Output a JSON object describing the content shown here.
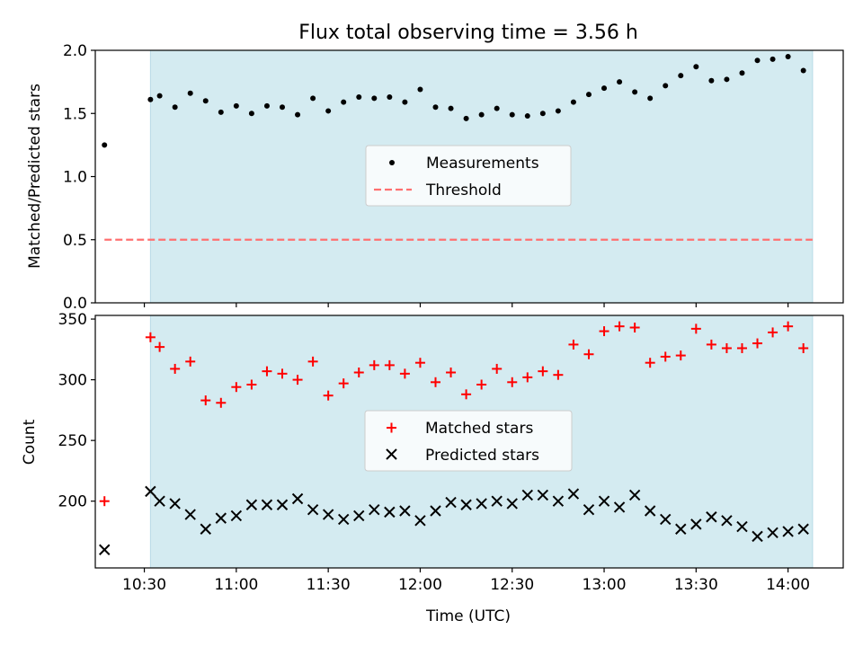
{
  "colors": {
    "observing_span": "#d4ebf1",
    "observing_span_edge": "#b8dbe6",
    "measurements": "#000000",
    "threshold": "#ff7070",
    "matched": "#ff0000",
    "predicted": "#000000"
  },
  "chart_data": [
    {
      "type": "scatter",
      "title": "Flux total observing time = 3.56 h",
      "ylabel": "Matched/Predicted stars",
      "xlim": [
        "10:14",
        "14:18"
      ],
      "ylim": [
        0,
        2.0
      ],
      "yticks": [
        0.0,
        0.5,
        1.0,
        1.5,
        2.0
      ],
      "ytick_labels": [
        "0.0",
        "0.5",
        "1.0",
        "1.5",
        "2.0"
      ],
      "legend": "center",
      "observing_span": [
        "10:32",
        "14:08"
      ],
      "x": [
        "10:17",
        "10:32",
        "10:35",
        "10:40",
        "10:45",
        "10:50",
        "10:55",
        "11:00",
        "11:05",
        "11:10",
        "11:15",
        "11:20",
        "11:25",
        "11:30",
        "11:35",
        "11:40",
        "11:45",
        "11:50",
        "11:55",
        "12:00",
        "12:05",
        "12:10",
        "12:15",
        "12:20",
        "12:25",
        "12:30",
        "12:35",
        "12:40",
        "12:45",
        "12:50",
        "12:55",
        "13:00",
        "13:05",
        "13:10",
        "13:15",
        "13:20",
        "13:25",
        "13:30",
        "13:35",
        "13:40",
        "13:45",
        "13:50",
        "13:55",
        "14:00",
        "14:05"
      ],
      "series": [
        {
          "name": "Measurements",
          "values": [
            1.25,
            1.61,
            1.64,
            1.55,
            1.66,
            1.6,
            1.51,
            1.56,
            1.5,
            1.56,
            1.55,
            1.49,
            1.62,
            1.52,
            1.59,
            1.63,
            1.62,
            1.63,
            1.59,
            1.69,
            1.55,
            1.54,
            1.46,
            1.49,
            1.54,
            1.49,
            1.48,
            1.5,
            1.52,
            1.59,
            1.65,
            1.7,
            1.75,
            1.67,
            1.62,
            1.72,
            1.8,
            1.87,
            1.76,
            1.77,
            1.82,
            1.92,
            1.93,
            1.95,
            1.84
          ]
        },
        {
          "name": "Threshold",
          "x_range": [
            "10:17",
            "14:08"
          ],
          "value": 0.5
        }
      ]
    },
    {
      "type": "scatter",
      "ylabel": "Count",
      "xlabel": "Time (UTC)",
      "xlim": [
        "10:14",
        "14:18"
      ],
      "ylim": [
        145,
        353
      ],
      "yticks": [
        200,
        250,
        300,
        350
      ],
      "ytick_labels": [
        "200",
        "250",
        "300",
        "350"
      ],
      "xticks": [
        "10:30",
        "11:00",
        "11:30",
        "12:00",
        "12:30",
        "13:00",
        "13:30",
        "14:00"
      ],
      "xtick_labels": [
        "10:30",
        "11:00",
        "11:30",
        "12:00",
        "12:30",
        "13:00",
        "13:30",
        "14:00"
      ],
      "legend": "center",
      "observing_span": [
        "10:32",
        "14:08"
      ],
      "x": [
        "10:17",
        "10:32",
        "10:35",
        "10:40",
        "10:45",
        "10:50",
        "10:55",
        "11:00",
        "11:05",
        "11:10",
        "11:15",
        "11:20",
        "11:25",
        "11:30",
        "11:35",
        "11:40",
        "11:45",
        "11:50",
        "11:55",
        "12:00",
        "12:05",
        "12:10",
        "12:15",
        "12:20",
        "12:25",
        "12:30",
        "12:35",
        "12:40",
        "12:45",
        "12:50",
        "12:55",
        "13:00",
        "13:05",
        "13:10",
        "13:15",
        "13:20",
        "13:25",
        "13:30",
        "13:35",
        "13:40",
        "13:45",
        "13:50",
        "13:55",
        "14:00",
        "14:05"
      ],
      "series": [
        {
          "name": "Matched stars",
          "values": [
            200,
            335,
            327,
            309,
            315,
            283,
            281,
            294,
            296,
            307,
            305,
            300,
            315,
            287,
            297,
            306,
            312,
            312,
            305,
            314,
            298,
            306,
            288,
            296,
            309,
            298,
            302,
            307,
            304,
            329,
            321,
            340,
            344,
            343,
            314,
            319,
            320,
            342,
            329,
            326,
            326,
            330,
            339,
            344,
            326
          ]
        },
        {
          "name": "Predicted stars",
          "values": [
            160,
            208,
            200,
            198,
            189,
            177,
            186,
            188,
            197,
            197,
            197,
            202,
            193,
            189,
            185,
            188,
            193,
            191,
            192,
            184,
            192,
            199,
            197,
            198,
            200,
            198,
            205,
            205,
            200,
            206,
            193,
            200,
            195,
            205,
            192,
            185,
            177,
            181,
            187,
            184,
            179,
            171,
            174,
            175,
            177
          ]
        }
      ]
    }
  ]
}
